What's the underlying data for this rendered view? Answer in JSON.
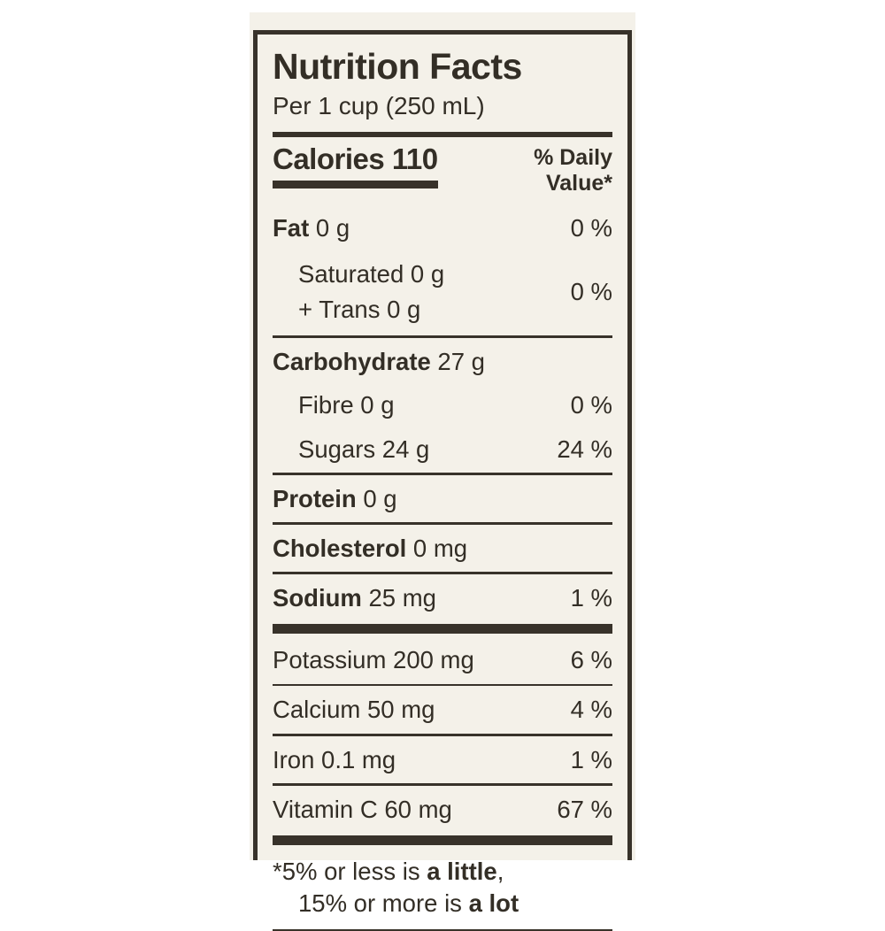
{
  "label": {
    "title": "Nutrition Facts",
    "serving": "Per 1 cup (250 mL)",
    "calories": "Calories 110",
    "daily_value_line1": "% Daily",
    "daily_value_line2": "Value*",
    "ink_color": "#38322a",
    "paper_color": "#f4f1e9",
    "nutrients": [
      {
        "type": "simple",
        "name": "Fat",
        "amount": "0 g",
        "bold": true,
        "indent": false,
        "dv": "0 %",
        "sep": "none"
      },
      {
        "type": "group",
        "lines": [
          "Saturated 0 g",
          "+ Trans 0 g"
        ],
        "indent": true,
        "dv": "0 %",
        "sep": "thin"
      },
      {
        "type": "simple",
        "name": "Carbohydrate",
        "amount": "27 g",
        "bold": true,
        "indent": false,
        "dv": "",
        "sep": "none"
      },
      {
        "type": "simple",
        "name": "Fibre",
        "amount": "0 g",
        "bold": false,
        "indent": true,
        "dv": "0 %",
        "sep": "none"
      },
      {
        "type": "simple",
        "name": "Sugars",
        "amount": "24 g",
        "bold": false,
        "indent": true,
        "dv": "24 %",
        "sep": "thin"
      },
      {
        "type": "simple",
        "name": "Protein",
        "amount": "0 g",
        "bold": true,
        "indent": false,
        "dv": "",
        "sep": "thin"
      },
      {
        "type": "simple",
        "name": "Cholesterol",
        "amount": "0 mg",
        "bold": true,
        "indent": false,
        "dv": "",
        "sep": "thin"
      },
      {
        "type": "simple",
        "name": "Sodium",
        "amount": "25 mg",
        "bold": true,
        "indent": false,
        "dv": "1 %",
        "sep": "thick"
      },
      {
        "type": "simple",
        "name": "Potassium",
        "amount": "200 mg",
        "bold": false,
        "indent": false,
        "dv": "6 %",
        "sep": "thin"
      },
      {
        "type": "simple",
        "name": "Calcium",
        "amount": "50 mg",
        "bold": false,
        "indent": false,
        "dv": "4 %",
        "sep": "thin"
      },
      {
        "type": "simple",
        "name": "Iron",
        "amount": "0.1 mg",
        "bold": false,
        "indent": false,
        "dv": "1 %",
        "sep": "thin"
      },
      {
        "type": "simple",
        "name": "Vitamin C",
        "amount": "60 mg",
        "bold": false,
        "indent": false,
        "dv": "67 %",
        "sep": "thick"
      }
    ],
    "footnote": {
      "line1": [
        {
          "text": "*5% or less is ",
          "bold": false
        },
        {
          "text": "a little",
          "bold": true
        },
        {
          "text": ",",
          "bold": false
        }
      ],
      "line2": [
        {
          "text": "15% or more is ",
          "bold": false
        },
        {
          "text": "a lot",
          "bold": true
        }
      ]
    }
  }
}
